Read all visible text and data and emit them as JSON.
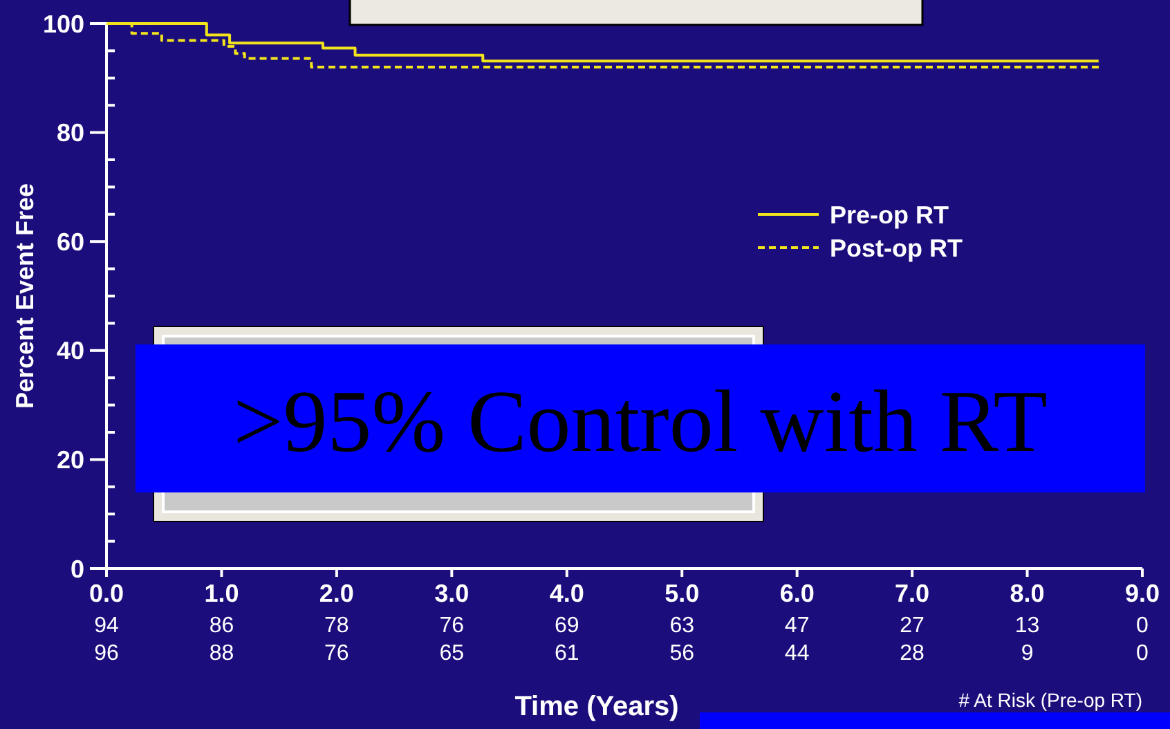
{
  "chart_data": {
    "type": "step",
    "xlabel": "Time (Years)",
    "ylabel": "Percent Event Free",
    "xlim": [
      0,
      9
    ],
    "xticks": [
      {
        "value": 0,
        "label": "0.0"
      },
      {
        "value": 1,
        "label": "1.0"
      },
      {
        "value": 2,
        "label": "2.0"
      },
      {
        "value": 3,
        "label": "3.0"
      },
      {
        "value": 4,
        "label": "4.0"
      },
      {
        "value": 5,
        "label": "5.0"
      },
      {
        "value": 6,
        "label": "6.0"
      },
      {
        "value": 7,
        "label": "7.0"
      },
      {
        "value": 8,
        "label": "8.0"
      },
      {
        "value": 9,
        "label": "9.0"
      }
    ],
    "ylim": [
      0,
      100
    ],
    "yticks": [
      0,
      {
        "value": 5,
        "label": null
      },
      {
        "value": 10,
        "label": null
      },
      {
        "value": 15,
        "label": null
      },
      20,
      {
        "value": 25,
        "label": null
      },
      {
        "value": 30,
        "label": null
      },
      {
        "value": 35,
        "label": null
      },
      40,
      {
        "value": 45,
        "label": null
      },
      {
        "value": 50,
        "label": null
      },
      {
        "value": 55,
        "label": null
      },
      60,
      {
        "value": 65,
        "label": null
      },
      {
        "value": 70,
        "label": null
      },
      {
        "value": 75,
        "label": null
      },
      80,
      {
        "value": 85,
        "label": null
      },
      {
        "value": 90,
        "label": null
      },
      {
        "value": 95,
        "label": null
      },
      100
    ],
    "grid": false,
    "legend": "right",
    "marker": "none",
    "series": [
      {
        "name": "Pre-op RT",
        "color": "#f2e41c",
        "line_style": "solid",
        "x": [
          0,
          0.87,
          1.07,
          1.88,
          2.16,
          3.27,
          8.62
        ],
        "values": [
          100,
          97.9,
          96.4,
          95.5,
          94.2,
          93.1,
          93.1
        ]
      },
      {
        "name": "Post-op RT",
        "color": "#f2e41c",
        "line_style": "dashed",
        "x": [
          0,
          0.22,
          0.48,
          1.02,
          1.12,
          1.2,
          1.78,
          8.64
        ],
        "values": [
          100,
          98.2,
          96.9,
          95.8,
          94.5,
          93.6,
          92.0,
          92.0
        ]
      }
    ],
    "annotations": [
      ">95% Control with RT",
      "94 86 78 76 69 63 47 27 13 0",
      "96 88 76 65 61 56 44 28 9 0",
      "# At Risk (Pre-op RT)"
    ]
  }
}
